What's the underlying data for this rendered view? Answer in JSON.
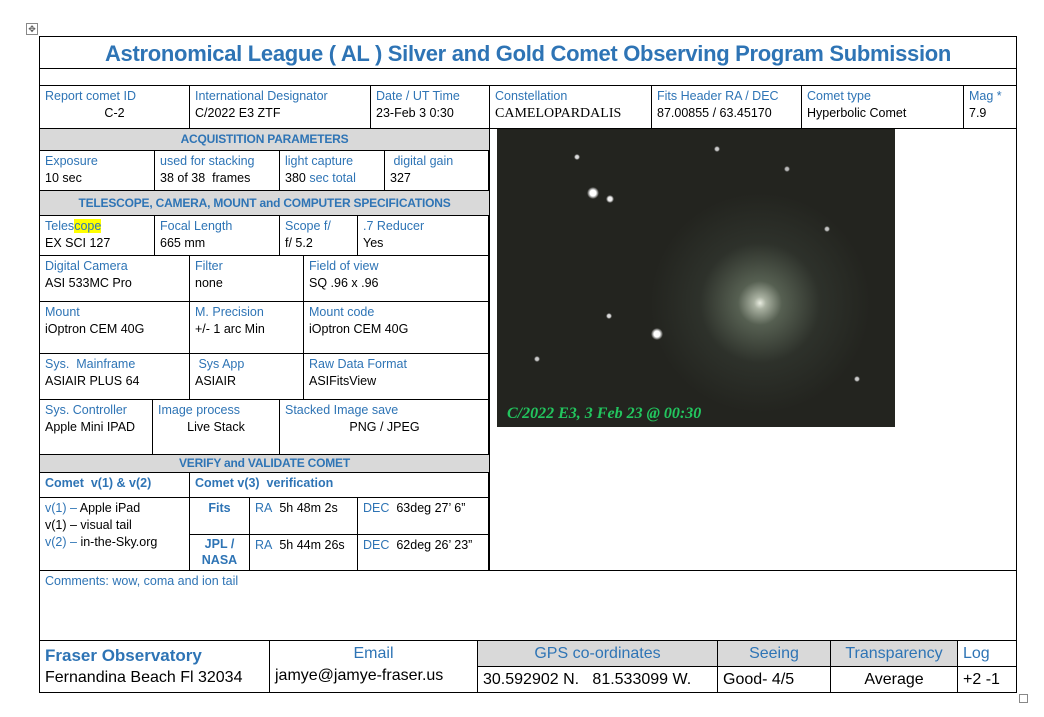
{
  "title": "Astronomical League ( AL )  Silver and Gold Comet Observing Program Submission",
  "header": [
    {
      "label": "Report comet ID",
      "value": "C-2"
    },
    {
      "label": "International Designator",
      "value": "C/2022 E3 ZTF"
    },
    {
      "label": "Date / UT Time",
      "value": "23-Feb 3 0:30"
    },
    {
      "label": "Constellation",
      "value": "CAMELOPARDALIS"
    },
    {
      "label": "Fits Header  RA / DEC",
      "value": "87.00855 / 63.45170"
    },
    {
      "label": "Comet type",
      "value": "Hyperbolic Comet"
    },
    {
      "label": "Mag *",
      "value": "7.9"
    }
  ],
  "acq": {
    "heading": "ACQUISTITION PARAMETERS",
    "cells": [
      {
        "label": "Exposure",
        "value": "10 sec"
      },
      {
        "label": "used for stacking",
        "value": "38 of 38  frames"
      },
      {
        "label": "light capture",
        "value": "380",
        "value_suffix": " sec total"
      },
      {
        "label": " digital gain",
        "value": "327"
      }
    ]
  },
  "specs": {
    "heading": "TELESCOPE, CAMERA, MOUNT and COMPUTER SPECIFICATIONS",
    "row1": [
      {
        "label_a": "Teles",
        "label_b": "cope",
        "value": "EX SCI 127"
      },
      {
        "label": "Focal Length",
        "value": "665 mm"
      },
      {
        "label": "Scope f/",
        "value": "f/ 5.2"
      },
      {
        "label": ".7 Reducer",
        "value": "Yes"
      }
    ],
    "row2": [
      {
        "label": "Digital Camera",
        "value": "ASI 533MC Pro"
      },
      {
        "label": "Filter",
        "value": "none"
      },
      {
        "label": "Field of view",
        "value": "SQ .96 x .96"
      }
    ],
    "row3": [
      {
        "label": "Mount",
        "value": "iOptron CEM 40G"
      },
      {
        "label": "M. Precision",
        "value": "+/- 1 arc Min"
      },
      {
        "label": "Mount code",
        "value": "iOptron CEM 40G"
      }
    ],
    "row4": [
      {
        "label": "Sys.  Mainframe",
        "value": "ASIAIR PLUS 64"
      },
      {
        "label": " Sys App",
        "value": "ASIAIR"
      },
      {
        "label": "Raw Data Format",
        "value": "ASIFitsView"
      }
    ],
    "row5": [
      {
        "label": "Sys. Controller",
        "value": "Apple Mini IPAD"
      },
      {
        "label": "Image process",
        "value": "Live Stack"
      },
      {
        "label": "Stacked Image save",
        "value": "PNG / JPEG"
      }
    ]
  },
  "verify": {
    "heading": "VERIFY and VALIDATE COMET",
    "col1": "Comet  v(1) & v(2)",
    "col2": "Comet v(3)  verification",
    "lines": [
      {
        "tag": "v(1) – ",
        "text": "Apple iPad"
      },
      {
        "tag": "",
        "text": "v(1) – visual tail"
      },
      {
        "tag": "v(2) – ",
        "text": "in-the-Sky.org"
      }
    ],
    "fits": {
      "source": "Fits",
      "ra_label": "RA",
      "ra": "5h 48m 2s",
      "dec_label": "DEC",
      "dec": "63deg 27’ 6”"
    },
    "jpl": {
      "source": "JPL / NASA",
      "ra_label": "RA",
      "ra": "5h 44m 26s",
      "dec_label": "DEC",
      "dec": "62deg 26’ 23”"
    }
  },
  "image_caption": "C/2022 E3, 3 Feb 23 @ 00:30",
  "comments": "Comments: wow, coma and ion tail",
  "footer": {
    "observatory": "Fraser Observatory",
    "location": "Fernandina Beach Fl 32034",
    "email_label": "Email",
    "email": "jamye@jamye-fraser.us",
    "gps_label": "GPS co-ordinates",
    "gps": "30.592902 N.   81.533099 W.",
    "seeing_label": "Seeing",
    "seeing": "Good- 4/5",
    "transparency_label": "Transparency",
    "transparency": "Average",
    "log_label": "Log",
    "log": "+2 -1"
  }
}
